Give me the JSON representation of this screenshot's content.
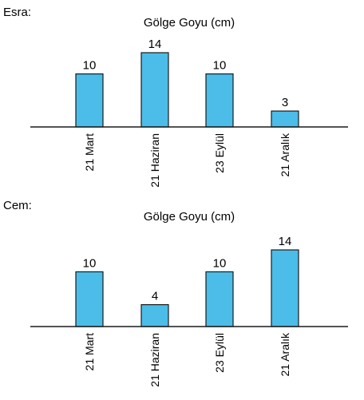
{
  "bar_color": "#4bbde8",
  "bar_stroke": "#1a1a1a",
  "chart_data": [
    {
      "type": "bar",
      "label": "Esra:",
      "title": "Gölge Goyu (cm)",
      "categories": [
        "21 Mart",
        "21 Haziran",
        "23 Eylül",
        "21 Aralık"
      ],
      "values": [
        10,
        14,
        10,
        3
      ],
      "xlabel": "",
      "ylabel": "",
      "ylim": [
        0,
        14
      ],
      "grid": false,
      "legend": false
    },
    {
      "type": "bar",
      "label": "Cem:",
      "title": "Gölge Goyu (cm)",
      "categories": [
        "21 Mart",
        "21 Haziran",
        "23 Eylül",
        "21 Aralık"
      ],
      "values": [
        10,
        4,
        10,
        14
      ],
      "xlabel": "",
      "ylabel": "",
      "ylim": [
        0,
        14
      ],
      "grid": false,
      "legend": false
    }
  ]
}
